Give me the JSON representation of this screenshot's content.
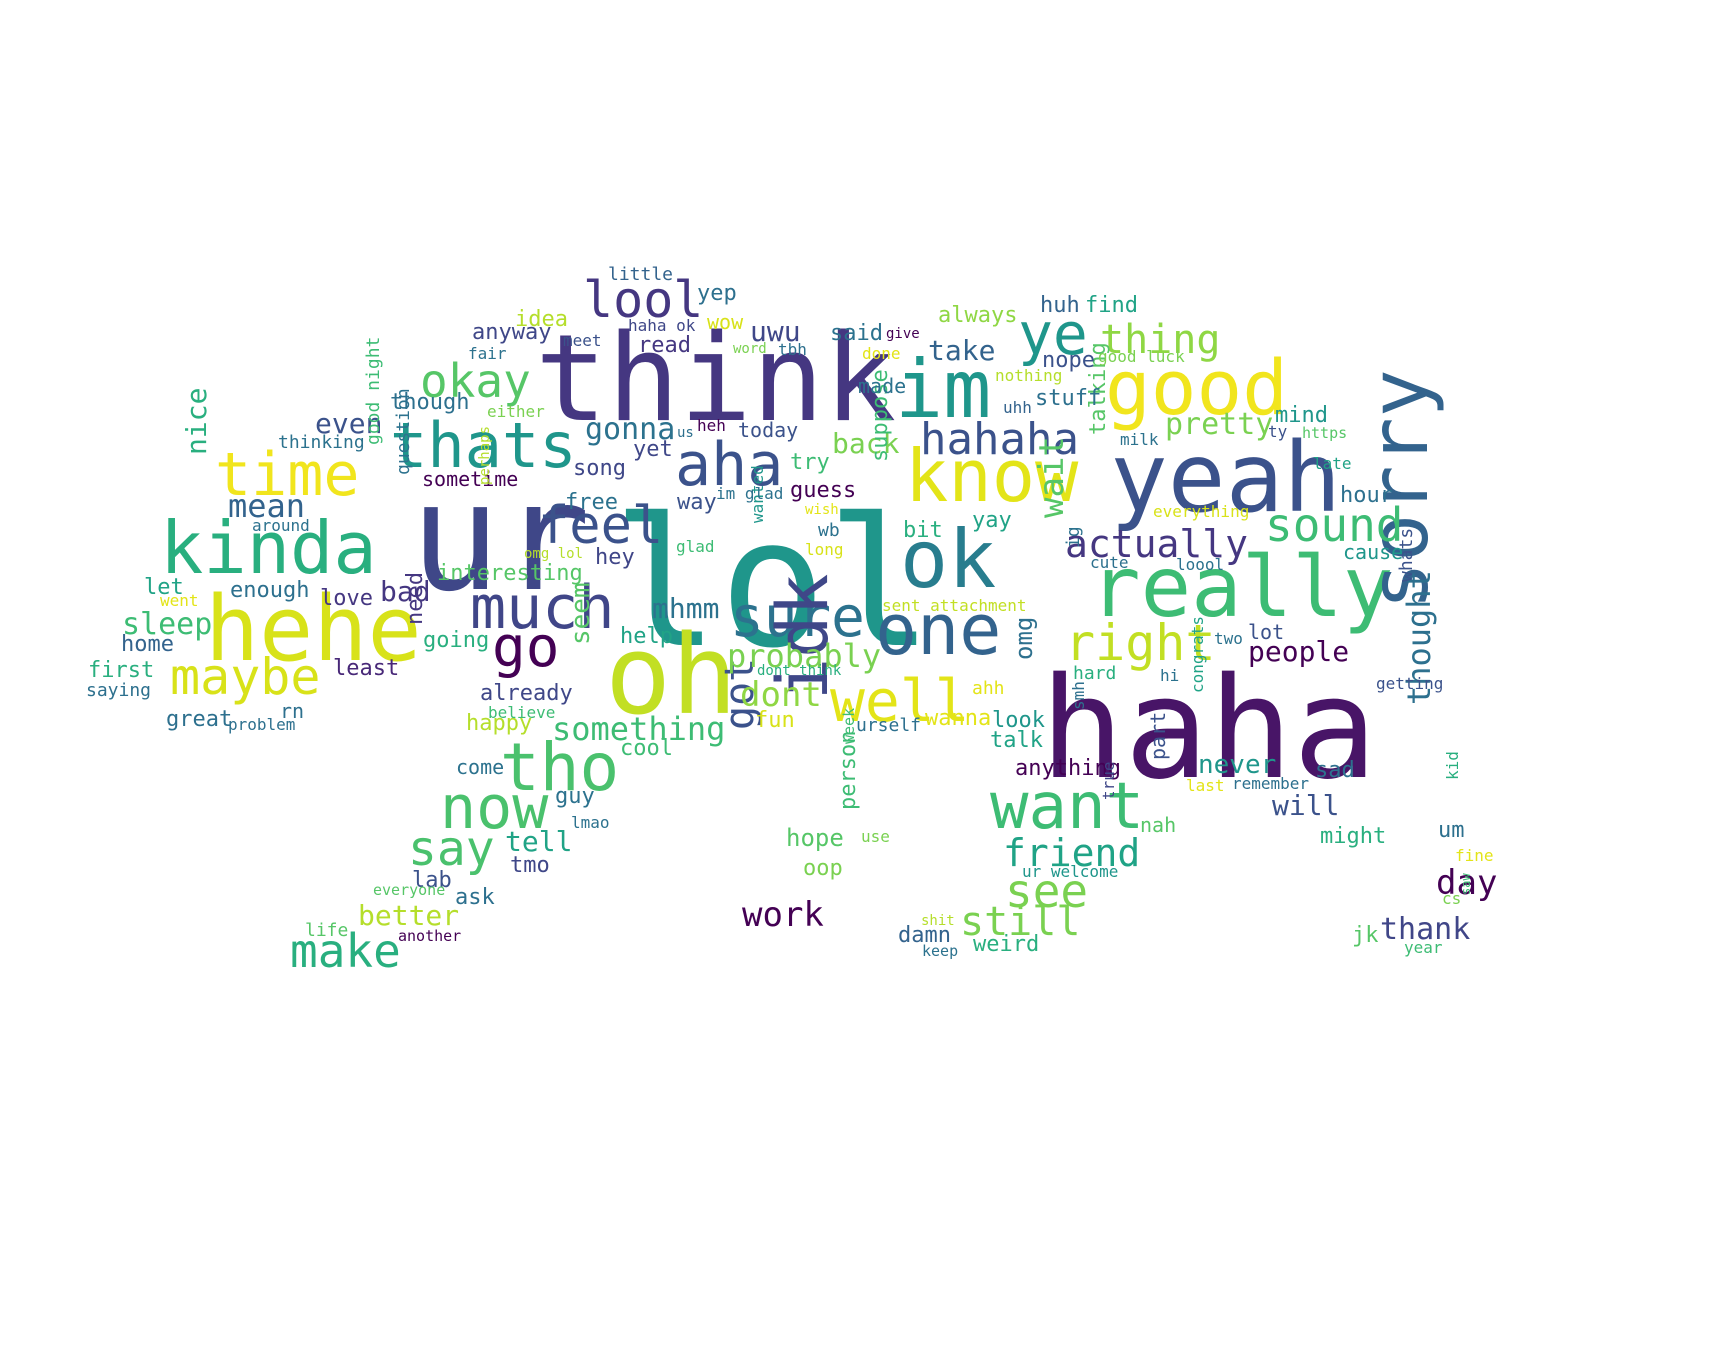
{
  "words": [
    {
      "text": "lol",
      "color": "#1f968b"
    },
    {
      "text": "ur",
      "color": "#3f4788"
    },
    {
      "text": "haha",
      "color": "#481567"
    },
    {
      "text": "think",
      "color": "#453781"
    },
    {
      "text": "oh",
      "color": "#c2df23"
    },
    {
      "text": "yeah",
      "color": "#3b528b"
    },
    {
      "text": "im",
      "color": "#1f968b"
    },
    {
      "text": "really",
      "color": "#3dbc74"
    },
    {
      "text": "hehe",
      "color": "#d8e219"
    },
    {
      "text": "ok",
      "color": "#287d8e"
    },
    {
      "text": "kinda",
      "color": "#29af7f"
    },
    {
      "text": "one",
      "color": "#33638d"
    },
    {
      "text": "know",
      "color": "#e3e418"
    },
    {
      "text": "good",
      "color": "#f1e51d"
    },
    {
      "text": "time",
      "color": "#f1e51d"
    },
    {
      "text": "thats",
      "color": "#1f968b"
    },
    {
      "text": "aha",
      "color": "#3b528b"
    },
    {
      "text": "much",
      "color": "#404688"
    },
    {
      "text": "sorry",
      "color": "#33638d"
    },
    {
      "text": "tho",
      "color": "#4ac16d"
    },
    {
      "text": "want",
      "color": "#3dbc74"
    },
    {
      "text": "sure",
      "color": "#2c728e"
    },
    {
      "text": "well",
      "color": "#e3e418"
    },
    {
      "text": "now",
      "color": "#4ac16d"
    },
    {
      "text": "idk",
      "color": "#3f4788"
    },
    {
      "text": "feel",
      "color": "#3b528b"
    },
    {
      "text": "maybe",
      "color": "#d8e219"
    },
    {
      "text": "go",
      "color": "#440154"
    },
    {
      "text": "right",
      "color": "#c2df23"
    },
    {
      "text": "ye",
      "color": "#1f968b"
    },
    {
      "text": "okay",
      "color": "#56c667"
    },
    {
      "text": "lool",
      "color": "#453781"
    },
    {
      "text": "hahaha",
      "color": "#3b528b"
    },
    {
      "text": "sound",
      "color": "#3dbc74"
    },
    {
      "text": "make",
      "color": "#29af7f"
    },
    {
      "text": "say",
      "color": "#4ac16d"
    },
    {
      "text": "see",
      "color": "#7ad151"
    },
    {
      "text": "got",
      "color": "#3b528b"
    },
    {
      "text": "thing",
      "color": "#8fd744"
    },
    {
      "text": "actually",
      "color": "#453781"
    },
    {
      "text": "wait",
      "color": "#56c667"
    },
    {
      "text": "friend",
      "color": "#20a386"
    },
    {
      "text": "still",
      "color": "#7ad151"
    },
    {
      "text": "thought",
      "color": "#2d708e"
    },
    {
      "text": "something",
      "color": "#3dbc74"
    },
    {
      "text": "probably",
      "color": "#7ad151"
    },
    {
      "text": "dont",
      "color": "#8fd744"
    },
    {
      "text": "work",
      "color": "#440154"
    },
    {
      "text": "mean",
      "color": "#33638d"
    },
    {
      "text": "day",
      "color": "#440154"
    },
    {
      "text": "gonna",
      "color": "#2c728e"
    },
    {
      "text": "pretty",
      "color": "#7ad151"
    },
    {
      "text": "sleep",
      "color": "#3dbc74"
    },
    {
      "text": "nice",
      "color": "#29af7f"
    },
    {
      "text": "people",
      "color": "#440154"
    },
    {
      "text": "mhmm",
      "color": "#2c728e"
    },
    {
      "text": "uwu",
      "color": "#3f4788"
    },
    {
      "text": "back",
      "color": "#7ad151"
    },
    {
      "text": "seem",
      "color": "#56c667"
    },
    {
      "text": "take",
      "color": "#33638d"
    },
    {
      "text": "better",
      "color": "#b5de2b"
    },
    {
      "text": "thank",
      "color": "#404688"
    },
    {
      "text": "tell",
      "color": "#20a386"
    },
    {
      "text": "never",
      "color": "#1f968b"
    },
    {
      "text": "will",
      "color": "#3b528b"
    },
    {
      "text": "omg",
      "color": "#2d708e"
    },
    {
      "text": "bad",
      "color": "#453781"
    },
    {
      "text": "even",
      "color": "#3b528b"
    },
    {
      "text": "interesting",
      "color": "#56c667"
    },
    {
      "text": "anything",
      "color": "#440154"
    },
    {
      "text": "thinking",
      "color": "#2c728e"
    },
    {
      "text": "good night",
      "color": "#3dbc74"
    },
    {
      "text": "question",
      "color": "#2c728e"
    },
    {
      "text": "talking",
      "color": "#56c667"
    },
    {
      "text": "suppose",
      "color": "#3dbc74"
    },
    {
      "text": "wanna",
      "color": "#e3e418"
    },
    {
      "text": "fun",
      "color": "#d8e219"
    },
    {
      "text": "cool",
      "color": "#3dbc74"
    },
    {
      "text": "look",
      "color": "#1f968b"
    },
    {
      "text": "talk",
      "color": "#20a386"
    },
    {
      "text": "already",
      "color": "#3f4788"
    },
    {
      "text": "happy",
      "color": "#b5de2b"
    },
    {
      "text": "hope",
      "color": "#56c667"
    },
    {
      "text": "guy",
      "color": "#2c728e"
    },
    {
      "text": "person",
      "color": "#3dbc74"
    },
    {
      "text": "part",
      "color": "#3b528b"
    },
    {
      "text": "hour",
      "color": "#2d708e"
    },
    {
      "text": "cause",
      "color": "#1f968b"
    },
    {
      "text": "whats",
      "color": "#3b528b"
    },
    {
      "text": "lot",
      "color": "#3b528b"
    },
    {
      "text": "sad",
      "color": "#2d708e"
    },
    {
      "text": "might",
      "color": "#29af7f"
    },
    {
      "text": "um",
      "color": "#2d708e"
    },
    {
      "text": "jk",
      "color": "#56c667"
    },
    {
      "text": "weird",
      "color": "#29af7f"
    },
    {
      "text": "damn",
      "color": "#33638d"
    },
    {
      "text": "stuff",
      "color": "#2d708e"
    },
    {
      "text": "mind",
      "color": "#1f968b"
    },
    {
      "text": "find",
      "color": "#20a386"
    },
    {
      "text": "huh",
      "color": "#33638d"
    },
    {
      "text": "nope",
      "color": "#3b528b"
    },
    {
      "text": "always",
      "color": "#8fd744"
    },
    {
      "text": "said",
      "color": "#2c728e"
    },
    {
      "text": "made",
      "color": "#2c728e"
    },
    {
      "text": "today",
      "color": "#3b528b"
    },
    {
      "text": "try",
      "color": "#3dbc74"
    },
    {
      "text": "guess",
      "color": "#440154"
    },
    {
      "text": "bit",
      "color": "#29af7f"
    },
    {
      "text": "yay",
      "color": "#20a386"
    },
    {
      "text": "hey",
      "color": "#404688"
    },
    {
      "text": "way",
      "color": "#3b528b"
    },
    {
      "text": "yet",
      "color": "#3f4788"
    },
    {
      "text": "free",
      "color": "#2c728e"
    },
    {
      "text": "song",
      "color": "#3f4788"
    },
    {
      "text": "help",
      "color": "#20a386"
    },
    {
      "text": "going",
      "color": "#29af7f"
    },
    {
      "text": "need",
      "color": "#453781"
    },
    {
      "text": "love",
      "color": "#453781"
    },
    {
      "text": "least",
      "color": "#482878"
    },
    {
      "text": "enough",
      "color": "#2d708e"
    },
    {
      "text": "sometime",
      "color": "#440154"
    },
    {
      "text": "though",
      "color": "#2d708e"
    },
    {
      "text": "anyway",
      "color": "#3f4788"
    },
    {
      "text": "read",
      "color": "#453781"
    },
    {
      "text": "idea",
      "color": "#b5de2b"
    },
    {
      "text": "yep",
      "color": "#2d708e"
    },
    {
      "text": "wow",
      "color": "#d8e219"
    },
    {
      "text": "little",
      "color": "#33638d"
    },
    {
      "text": "haha ok",
      "color": "#3f4788"
    },
    {
      "text": "meet",
      "color": "#3b528b"
    },
    {
      "text": "fair",
      "color": "#2c728e"
    },
    {
      "text": "either",
      "color": "#7ad151"
    },
    {
      "text": "word",
      "color": "#7ad151"
    },
    {
      "text": "tbh",
      "color": "#2d708e"
    },
    {
      "text": "give",
      "color": "#440154"
    },
    {
      "text": "done",
      "color": "#e3e418"
    },
    {
      "text": "nothing",
      "color": "#b5de2b"
    },
    {
      "text": "uhh",
      "color": "#33638d"
    },
    {
      "text": "good luck",
      "color": "#7ad151"
    },
    {
      "text": "ty",
      "color": "#3b528b"
    },
    {
      "text": "https",
      "color": "#56c667"
    },
    {
      "text": "milk",
      "color": "#2c728e"
    },
    {
      "text": "late",
      "color": "#20a386"
    },
    {
      "text": "everything",
      "color": "#d8e219"
    },
    {
      "text": "ig",
      "color": "#2c728e"
    },
    {
      "text": "cute",
      "color": "#2d708e"
    },
    {
      "text": "loool",
      "color": "#2c728e"
    },
    {
      "text": "sent attachment",
      "color": "#c2df23"
    },
    {
      "text": "dont think",
      "color": "#29af7f"
    },
    {
      "text": "wanted",
      "color": "#1f968b"
    },
    {
      "text": "wish",
      "color": "#e3e418"
    },
    {
      "text": "long",
      "color": "#d8e219"
    },
    {
      "text": "wb",
      "color": "#2c728e"
    },
    {
      "text": "im glad",
      "color": "#2c728e"
    },
    {
      "text": "glad",
      "color": "#3dbc74"
    },
    {
      "text": "omg lol",
      "color": "#b5de2b"
    },
    {
      "text": "perhaps",
      "color": "#b5de2b"
    },
    {
      "text": "us",
      "color": "#2d708e"
    },
    {
      "text": "heh",
      "color": "#440154"
    },
    {
      "text": "around",
      "color": "#2c728e"
    },
    {
      "text": "let",
      "color": "#20a386"
    },
    {
      "text": "went",
      "color": "#e3e418"
    },
    {
      "text": "home",
      "color": "#33638d"
    },
    {
      "text": "first",
      "color": "#29af7f"
    },
    {
      "text": "saying",
      "color": "#2d708e"
    },
    {
      "text": "great",
      "color": "#2d708e"
    },
    {
      "text": "rn",
      "color": "#2d708e"
    },
    {
      "text": "problem",
      "color": "#2d708e"
    },
    {
      "text": "believe",
      "color": "#3dbc74"
    },
    {
      "text": "come",
      "color": "#2c728e"
    },
    {
      "text": "lmao",
      "color": "#2c728e"
    },
    {
      "text": "tmo",
      "color": "#3f4788"
    },
    {
      "text": "lab",
      "color": "#3b528b"
    },
    {
      "text": "ask",
      "color": "#2d708e"
    },
    {
      "text": "everyone",
      "color": "#56c667"
    },
    {
      "text": "life",
      "color": "#56c667"
    },
    {
      "text": "another",
      "color": "#440154"
    },
    {
      "text": "oop",
      "color": "#7ad151"
    },
    {
      "text": "use",
      "color": "#7ad151"
    },
    {
      "text": "week",
      "color": "#3dbc74"
    },
    {
      "text": "urself",
      "color": "#2d708e"
    },
    {
      "text": "ahh",
      "color": "#e3e418"
    },
    {
      "text": "ur welcome",
      "color": "#1f968b"
    },
    {
      "text": "true",
      "color": "#3f4788"
    },
    {
      "text": "nah",
      "color": "#56c667"
    },
    {
      "text": "smh",
      "color": "#2d708e"
    },
    {
      "text": "hard",
      "color": "#29af7f"
    },
    {
      "text": "hi",
      "color": "#2c728e"
    },
    {
      "text": "congrats",
      "color": "#20a386"
    },
    {
      "text": "last",
      "color": "#e3e418"
    },
    {
      "text": "remember",
      "color": "#2d708e"
    },
    {
      "text": "two",
      "color": "#2c728e"
    },
    {
      "text": "getting",
      "color": "#3b528b"
    },
    {
      "text": "kid",
      "color": "#29af7f"
    },
    {
      "text": "fine",
      "color": "#e3e418"
    },
    {
      "text": "cs",
      "color": "#7ad151"
    },
    {
      "text": "saw",
      "color": "#3dbc74"
    },
    {
      "text": "year",
      "color": "#3dbc74"
    },
    {
      "text": "shit",
      "color": "#b5de2b"
    },
    {
      "text": "keep",
      "color": "#2c728e"
    }
  ]
}
